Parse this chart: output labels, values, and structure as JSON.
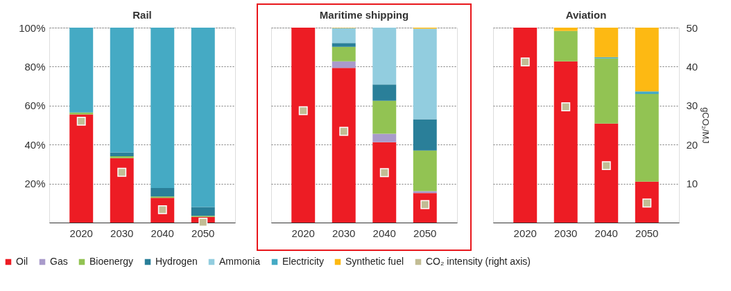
{
  "chart_data": [
    {
      "type": "bar",
      "title": "Rail",
      "stacked": true,
      "categories": [
        "2020",
        "2030",
        "2040",
        "2050"
      ],
      "ylim": [
        0,
        100
      ],
      "yticks": [
        {
          "value": 20,
          "label": "20%"
        },
        {
          "value": 40,
          "label": "40%"
        },
        {
          "value": 60,
          "label": "60%"
        },
        {
          "value": 80,
          "label": "80%"
        },
        {
          "value": 100,
          "label": "100%"
        }
      ],
      "y2lim": [
        0,
        50
      ],
      "grid": "y",
      "legend": "bottom",
      "tick_labels": "xy",
      "series": [
        {
          "name": "Oil",
          "color": "#ed1c24",
          "values": [
            55.5,
            33.1,
            12.7,
            2.9
          ]
        },
        {
          "name": "Gas",
          "color": "#a99bcb",
          "values": [
            null,
            null,
            null,
            null
          ]
        },
        {
          "name": "Bioenergy",
          "color": "#92c353",
          "values": [
            1.0,
            0.9,
            0.7,
            0.6
          ]
        },
        {
          "name": "Hydrogen",
          "color": "#2a7f99",
          "values": [
            null,
            2.0,
            4.3,
            4.5
          ]
        },
        {
          "name": "Ammonia",
          "color": "#92cddf",
          "values": [
            null,
            null,
            null,
            null
          ]
        },
        {
          "name": "Electricity",
          "color": "#45aac4",
          "values": [
            43.5,
            64.0,
            82.3,
            92.0
          ]
        },
        {
          "name": "Synthetic fuel",
          "color": "#fdb913",
          "values": [
            null,
            null,
            null,
            null
          ]
        },
        {
          "name": "CO₂ intensity (right axis)",
          "type": "scatter",
          "axis": "y2",
          "marker": "square",
          "color": "#c2bc94",
          "values": [
            26.0,
            12.9,
            3.3,
            0.1
          ]
        }
      ]
    },
    {
      "type": "bar",
      "title": "Maritime shipping",
      "stacked": true,
      "categories": [
        "2020",
        "2030",
        "2040",
        "2050"
      ],
      "ylim": [
        0,
        100
      ],
      "y2lim": [
        0,
        50
      ],
      "grid": "y",
      "tick_labels": "x",
      "series": [
        {
          "color": "#ed1c24",
          "values": [
            100,
            79.3,
            41.2,
            15.2
          ]
        },
        {
          "color": "#a99bcb",
          "values": [
            null,
            3.4,
            4.4,
            0.9
          ]
        },
        {
          "color": "#92c353",
          "values": [
            null,
            7.5,
            16.9,
            20.9
          ]
        },
        {
          "color": "#2a7f99",
          "values": [
            null,
            1.9,
            8.3,
            16.0
          ]
        },
        {
          "color": "#92cddf",
          "values": [
            null,
            7.7,
            29.2,
            46.5
          ]
        },
        {
          "color": "#fdb913",
          "values": [
            null,
            0.2,
            null,
            0.5
          ]
        },
        {
          "type": "scatter",
          "axis": "y2",
          "marker": "square",
          "color": "#c2bc94",
          "values": [
            28.7,
            23.4,
            12.8,
            4.6
          ]
        }
      ]
    },
    {
      "type": "bar",
      "title": "Aviation",
      "stacked": true,
      "categories": [
        "2020",
        "2030",
        "2040",
        "2050"
      ],
      "ylim": [
        0,
        100
      ],
      "y2lim": [
        0,
        50
      ],
      "y2ticks": [
        10,
        20,
        30,
        40,
        50
      ],
      "y2label": "gCO₂/MJ",
      "grid": "y",
      "tick_labels": "xy2",
      "series": [
        {
          "color": "#ed1c24",
          "values": [
            100,
            82.7,
            50.8,
            21.0
          ]
        },
        {
          "color": "#92c353",
          "values": [
            null,
            15.6,
            33.4,
            45.0
          ]
        },
        {
          "color": "#45aac4",
          "values": [
            null,
            null,
            0.6,
            1.3
          ]
        },
        {
          "color": "#fdb913",
          "values": [
            null,
            1.7,
            15.2,
            32.7
          ]
        },
        {
          "type": "scatter",
          "axis": "y2",
          "marker": "square",
          "color": "#c2bc94",
          "values": [
            41.2,
            29.7,
            14.6,
            5.0
          ]
        }
      ]
    }
  ]
}
